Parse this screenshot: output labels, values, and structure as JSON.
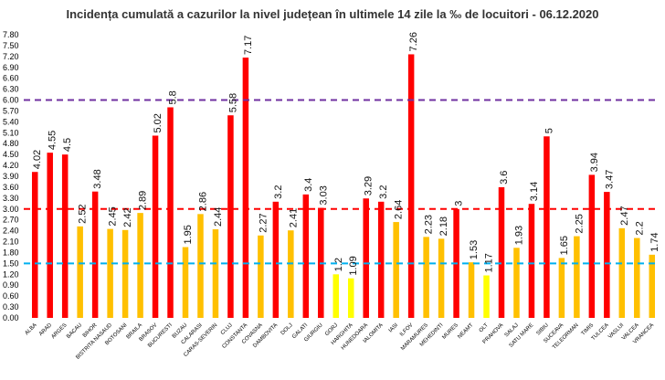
{
  "chart_data": {
    "type": "bar",
    "title": "Incidența cumulată a cazurilor la nivel județean în ultimele 14 zile la ‰ de locuitori - 06.12.2020",
    "xlabel": "",
    "ylabel": "",
    "ylim": [
      0,
      7.8
    ],
    "y_ticks": [
      "0.00",
      "0.30",
      "0.60",
      "0.90",
      "1.20",
      "1.50",
      "1.80",
      "2.10",
      "2.40",
      "2.70",
      "3.00",
      "3.30",
      "3.60",
      "3.90",
      "4.20",
      "4.50",
      "4.80",
      "5.10",
      "5.40",
      "5.70",
      "6.00",
      "6.30",
      "6.60",
      "6.90",
      "7.20",
      "7.50",
      "7.80"
    ],
    "categories": [
      "ALBA",
      "ARAD",
      "ARGES",
      "BACAU",
      "BIHOR",
      "BISTRITA NASAUD",
      "BOTOSANI",
      "BRAILA",
      "BRASOV",
      "BUCURESTI",
      "BUZAU",
      "CALARASI",
      "CARAS-SEVERIN",
      "CLUJ",
      "CONSTANTA",
      "COVASNA",
      "DAMBOVITA",
      "DOLJ",
      "GALATI",
      "GIURGIU",
      "GORJ",
      "HARGHITA",
      "HUNEDOARA",
      "IALOMITA",
      "IASI",
      "ILFOV",
      "MARAMURES",
      "MEHEDINTI",
      "MURES",
      "NEAMT",
      "OLT",
      "PRAHOVA",
      "SALAJ",
      "SATU MARE",
      "SIBIU",
      "SUCEAVA",
      "TELEORMAN",
      "TIMIS",
      "TULCEA",
      "VASLUI",
      "VALCEA",
      "VRANCEA"
    ],
    "values": [
      4.02,
      4.55,
      4.5,
      2.52,
      3.48,
      2.45,
      2.42,
      2.89,
      5.02,
      5.8,
      1.95,
      2.86,
      2.44,
      5.58,
      7.17,
      2.27,
      3.2,
      2.41,
      3.4,
      3.03,
      1.2,
      1.09,
      3.29,
      3.2,
      2.64,
      7.26,
      2.23,
      2.18,
      3,
      1.53,
      1.17,
      3.6,
      1.93,
      3.14,
      5,
      1.65,
      2.25,
      3.94,
      3.47,
      2.47,
      2.2,
      1.74
    ],
    "data_labels": [
      "4.02",
      "4.55",
      "4.5",
      "2.52",
      "3.48",
      "2.45",
      "2.42",
      "2.89",
      "5.02",
      "5.8",
      "1.95",
      "2.86",
      "2.44",
      "5.58",
      "7.17",
      "2.27",
      "3.2",
      "2.41",
      "3.4",
      "3.03",
      "1.2",
      "1.09",
      "3.29",
      "3.2",
      "2.64",
      "7.26",
      "2.23",
      "2.18",
      "3",
      "1.53",
      "1.17",
      "3.6",
      "1.93",
      "3.14",
      "5",
      "1.65",
      "2.25",
      "3.94",
      "3.47",
      "2.47",
      "2.2",
      "1.74"
    ],
    "thresholds": [
      {
        "value": 6.0,
        "color": "#7030a0"
      },
      {
        "value": 3.0,
        "color": "#ff0000"
      },
      {
        "value": 1.5,
        "color": "#00b0f0"
      }
    ],
    "colors": {
      "high": "#ff0000",
      "mid": "#ffc000",
      "low": "#ffff00"
    },
    "grid": false,
    "legend": "none"
  }
}
